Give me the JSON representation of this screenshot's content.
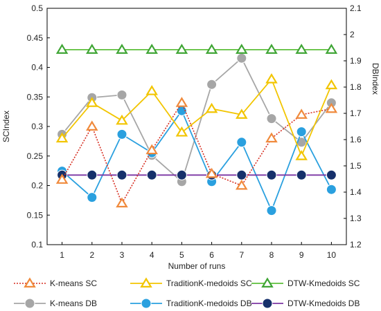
{
  "chart_data": {
    "type": "line",
    "x": [
      1,
      2,
      3,
      4,
      5,
      6,
      7,
      8,
      9,
      10
    ],
    "xlabel": "Number of runs",
    "ylabel_left": "SCIndex",
    "ylabel_right": "DBIndex",
    "ylim_left": [
      0.1,
      0.5
    ],
    "ylim_right": [
      1.2,
      2.1
    ],
    "yticks_left": [
      "0.1",
      "0.15",
      "0.2",
      "0.25",
      "0.3",
      "0.35",
      "0.4",
      "0.45",
      "0.5"
    ],
    "yticks_right": [
      "1.2",
      "1.3",
      "1.4",
      "1.5",
      "1.6",
      "1.7",
      "1.8",
      "1.9",
      "2",
      "2.1"
    ],
    "xticks": [
      "1",
      "2",
      "3",
      "4",
      "5",
      "6",
      "7",
      "8",
      "9",
      "10"
    ],
    "grid": false,
    "legend_position": "bottom",
    "series": [
      {
        "name": "K-means SC",
        "axis": "left",
        "marker": "triangle",
        "line": "dotted",
        "color": "#d62c1f",
        "marker_color": "#f08a3c",
        "values": [
          0.21,
          0.3,
          0.17,
          0.26,
          0.34,
          0.22,
          0.2,
          0.28,
          0.32,
          0.33
        ]
      },
      {
        "name": "TraditionK-medoids SC",
        "axis": "left",
        "marker": "triangle",
        "line": "solid",
        "color": "#f2c500",
        "marker_color": "#f2c500",
        "values": [
          0.28,
          0.34,
          0.31,
          0.36,
          0.29,
          0.33,
          0.32,
          0.38,
          0.25,
          0.37
        ]
      },
      {
        "name": "DTW-Kmedoids SC",
        "axis": "left",
        "marker": "triangle",
        "line": "solid",
        "color": "#5cbf3a",
        "marker_color": "#3fa535",
        "values": [
          0.43,
          0.43,
          0.43,
          0.43,
          0.43,
          0.43,
          0.43,
          0.43,
          0.43,
          0.43
        ]
      },
      {
        "name": "K-means DB",
        "axis": "right",
        "marker": "circle",
        "line": "solid",
        "color": "#a6a6a6",
        "marker_color": "#a6a6a6",
        "values": [
          1.62,
          1.76,
          1.77,
          1.54,
          1.44,
          1.81,
          1.91,
          1.68,
          1.59,
          1.74
        ]
      },
      {
        "name": "TraditionK-medoids DB",
        "axis": "right",
        "marker": "circle",
        "line": "solid",
        "color": "#2aa0df",
        "marker_color": "#2aa0df",
        "values": [
          1.48,
          1.38,
          1.62,
          1.55,
          1.71,
          1.44,
          1.59,
          1.33,
          1.63,
          1.41
        ]
      },
      {
        "name": "DTW-Kmedoids DB",
        "axis": "right",
        "marker": "circle",
        "line": "solid",
        "color": "#7b35a3",
        "marker_color": "#16306b",
        "values": [
          1.465,
          1.465,
          1.465,
          1.465,
          1.465,
          1.465,
          1.465,
          1.465,
          1.465,
          1.465
        ]
      }
    ]
  }
}
